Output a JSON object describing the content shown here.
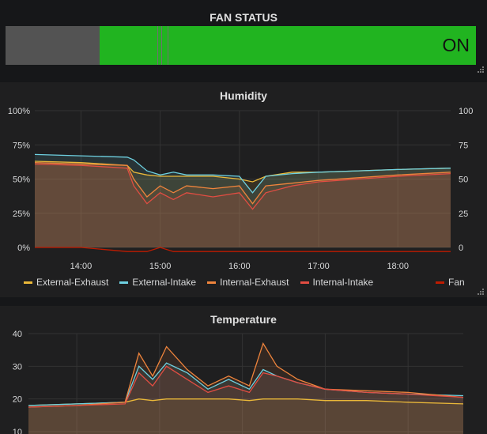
{
  "fan_status": {
    "title": "FAN STATUS",
    "value": "ON",
    "on_color": "#21b420",
    "off_color": "#535353"
  },
  "humidity": {
    "title": "Humidity",
    "left_ticks": [
      "100%",
      "75%",
      "50%",
      "25%",
      "0%"
    ],
    "right_ticks": [
      "100",
      "75",
      "50",
      "25",
      "0"
    ],
    "x_ticks": [
      "14:00",
      "15:00",
      "16:00",
      "17:00",
      "18:00"
    ],
    "legend": [
      {
        "name": "External-Exhaust",
        "color": "#eab839"
      },
      {
        "name": "External-Intake",
        "color": "#6ed0e0"
      },
      {
        "name": "Internal-Exhaust",
        "color": "#ef843c"
      },
      {
        "name": "Internal-Intake",
        "color": "#e24d42"
      }
    ],
    "legend_fan": {
      "name": "Fan",
      "color": "#bf1b00"
    }
  },
  "temperature": {
    "title": "Temperature",
    "left_ticks": [
      "40",
      "30",
      "20",
      "10"
    ]
  },
  "chart_data": [
    {
      "type": "line",
      "title": "Humidity",
      "ylim": [
        0,
        100
      ],
      "x": [
        "13:25",
        "14:00",
        "14:35",
        "14:40",
        "14:50",
        "15:00",
        "15:10",
        "15:20",
        "15:40",
        "16:00",
        "16:10",
        "16:20",
        "16:40",
        "17:00",
        "17:30",
        "18:00",
        "18:40"
      ],
      "series": [
        {
          "name": "External-Exhaust",
          "values": [
            63,
            62,
            60,
            55,
            53,
            52,
            52,
            52,
            52,
            50,
            48,
            52,
            55,
            55,
            56,
            57,
            58
          ]
        },
        {
          "name": "External-Intake",
          "values": [
            68,
            67,
            66,
            64,
            56,
            53,
            55,
            53,
            53,
            52,
            40,
            52,
            54,
            55,
            56,
            57,
            58
          ]
        },
        {
          "name": "Internal-Exhaust",
          "values": [
            62,
            61,
            60,
            50,
            37,
            45,
            40,
            45,
            43,
            45,
            32,
            45,
            47,
            49,
            51,
            53,
            55
          ]
        },
        {
          "name": "Internal-Intake",
          "values": [
            61,
            60,
            58,
            45,
            32,
            40,
            35,
            40,
            37,
            40,
            28,
            40,
            45,
            48,
            50,
            52,
            54
          ]
        },
        {
          "name": "Fan",
          "values": [
            0,
            0,
            -3,
            -3,
            -3,
            0,
            -3,
            -3,
            -3,
            -3,
            -3,
            -3,
            -3,
            -3,
            -3,
            -3,
            -3
          ]
        }
      ]
    },
    {
      "type": "line",
      "title": "Temperature",
      "ylim": [
        10,
        40
      ],
      "x": [
        "13:25",
        "14:00",
        "14:35",
        "14:45",
        "14:55",
        "15:05",
        "15:20",
        "15:35",
        "15:50",
        "16:05",
        "16:15",
        "16:25",
        "16:40",
        "17:00",
        "17:30",
        "18:00",
        "18:40"
      ],
      "series": [
        {
          "name": "External-Exhaust",
          "values": [
            18,
            18.5,
            19,
            20,
            19.5,
            20,
            20,
            20,
            20,
            19.5,
            20,
            20,
            20,
            19.5,
            19.5,
            19,
            18.5
          ]
        },
        {
          "name": "External-Intake",
          "values": [
            18,
            18.5,
            19,
            30,
            26,
            31,
            28,
            23,
            26,
            23,
            29,
            27,
            25,
            23,
            22,
            21.5,
            21
          ]
        },
        {
          "name": "Internal-Exhaust",
          "values": [
            17.5,
            18,
            19,
            34,
            27,
            36,
            29,
            24,
            27,
            24,
            37,
            30,
            26,
            23,
            22.5,
            22,
            20.5
          ]
        },
        {
          "name": "Internal-Intake",
          "values": [
            17.5,
            18,
            18.5,
            28,
            24,
            30,
            26,
            22,
            24,
            22,
            28,
            27,
            25,
            23,
            22,
            21.5,
            20.5
          ]
        }
      ]
    }
  ]
}
